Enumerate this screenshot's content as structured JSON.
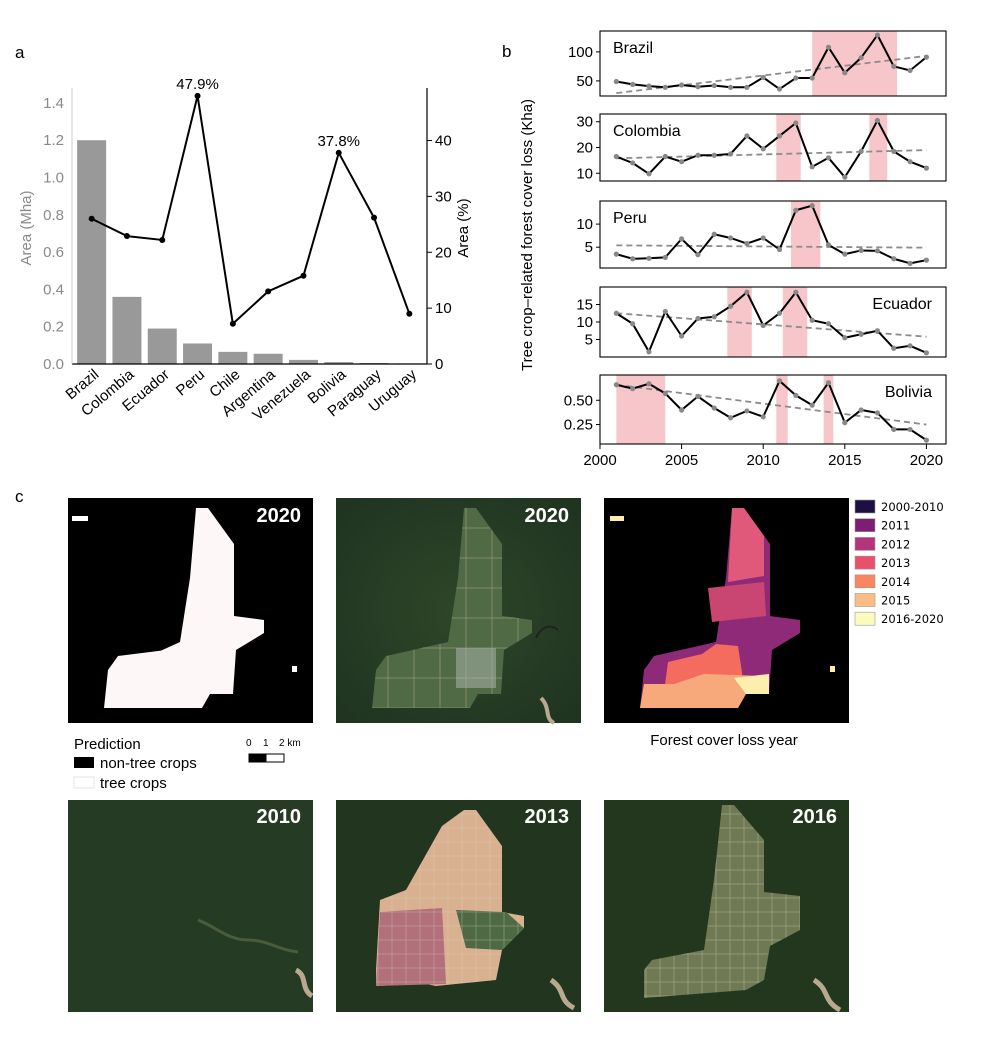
{
  "panel_labels": {
    "a": "a",
    "b": "b",
    "c": "c"
  },
  "colors": {
    "bar": "#999999",
    "line": "#000000",
    "trend": "#8c8c8c",
    "highlight": "#f4b3b8",
    "left_axis": "#8a8a8a"
  },
  "chart_data": [
    {
      "id": "panel-a",
      "type": "bar+line",
      "categories": [
        "Brazil",
        "Colombia",
        "Ecuador",
        "Peru",
        "Chile",
        "Argentina",
        "Venezuela",
        "Bolivia",
        "Paraguay",
        "Uruguay"
      ],
      "bar_values": [
        1.2,
        0.36,
        0.19,
        0.11,
        0.065,
        0.055,
        0.022,
        0.01,
        0.005,
        0.003
      ],
      "line_values": [
        26.0,
        22.9,
        22.2,
        48.0,
        7.2,
        13.0,
        15.8,
        37.8,
        26.2,
        9.0
      ],
      "ylabel_left": "Area (Mha)",
      "ylabel_right": "Area (%)",
      "ylim_left": [
        0,
        1.48
      ],
      "ylim_right": [
        0,
        49.4
      ],
      "yticks_left": [
        "0.0",
        "0.2",
        "0.4",
        "0.6",
        "0.8",
        "1.0",
        "1.2",
        "1.4"
      ],
      "yticks_left_values": [
        0,
        0.2,
        0.4,
        0.6,
        0.8,
        1.0,
        1.2,
        1.4
      ],
      "yticks_right": [
        "0",
        "10",
        "20",
        "30",
        "40"
      ],
      "yticks_right_values": [
        0,
        10,
        20,
        30,
        40
      ],
      "annotations": [
        {
          "text": "47.9%",
          "index": 3
        },
        {
          "text": "37.8%",
          "index": 7
        }
      ]
    },
    {
      "id": "panel-b",
      "type": "line",
      "ylabel": "Tree crop–related forest cover loss (Kha)",
      "x": [
        2001,
        2002,
        2003,
        2004,
        2005,
        2006,
        2007,
        2008,
        2009,
        2010,
        2011,
        2012,
        2013,
        2014,
        2015,
        2016,
        2017,
        2018,
        2019,
        2020
      ],
      "xlim": [
        2000,
        2021.2
      ],
      "xticks": [
        2000,
        2005,
        2010,
        2015,
        2020
      ],
      "xtick_labels": [
        "2000",
        "2005",
        "2010",
        "2015",
        "2020"
      ],
      "series": [
        {
          "name": "Brazil",
          "label_pos": "left",
          "values": [
            49,
            44,
            41,
            39,
            43,
            40,
            42,
            39,
            39,
            56,
            36,
            55,
            55,
            108,
            64,
            90,
            129,
            75,
            68,
            91
          ],
          "trend": [
            29,
            93
          ],
          "ylim": [
            24,
            136
          ],
          "yticks": [
            50,
            100
          ],
          "ytick_labels": [
            "50",
            "100"
          ],
          "highlights": [
            [
              2013,
              2018.2
            ]
          ]
        },
        {
          "name": "Colombia",
          "label_pos": "left",
          "values": [
            16.5,
            14,
            9.8,
            16.5,
            14.5,
            17,
            17,
            17.5,
            24.5,
            19.5,
            24.5,
            29.5,
            12.5,
            16,
            8.5,
            18.5,
            30.5,
            18.5,
            14.5,
            12
          ],
          "trend": [
            15.8,
            19
          ],
          "ylim": [
            7,
            33
          ],
          "yticks": [
            10,
            20,
            30
          ],
          "ytick_labels": [
            "10",
            "20",
            "30"
          ],
          "highlights": [
            [
              2010.8,
              2012.3
            ],
            [
              2016.5,
              2017.6
            ]
          ]
        },
        {
          "name": "Peru",
          "label_pos": "left",
          "values": [
            3.5,
            2.5,
            2.6,
            2.8,
            6.8,
            3.4,
            7.8,
            7,
            5.8,
            7,
            4.5,
            13,
            14,
            5.5,
            3.5,
            4.3,
            4.2,
            2.5,
            1.5,
            2.2
          ],
          "trend": [
            5.4,
            4.9
          ],
          "ylim": [
            0.5,
            15
          ],
          "yticks": [
            5,
            10
          ],
          "ytick_labels": [
            "5",
            "10"
          ],
          "highlights": [
            [
              2011.7,
              2013.5
            ]
          ]
        },
        {
          "name": "Ecuador",
          "label_pos": "right",
          "values": [
            12.5,
            9.5,
            1.5,
            13,
            6,
            11,
            11.5,
            14.5,
            18.5,
            9,
            12.5,
            18.5,
            10.5,
            9.5,
            5.5,
            6.5,
            7.5,
            2.5,
            3.2,
            1.2
          ],
          "trend": [
            12.5,
            5.8
          ],
          "ylim": [
            0,
            20
          ],
          "yticks": [
            5,
            10,
            15
          ],
          "ytick_labels": [
            "5",
            "10",
            "15"
          ],
          "highlights": [
            [
              2007.8,
              2009.3
            ],
            [
              2011.2,
              2012.7
            ]
          ]
        },
        {
          "name": "Bolivia",
          "label_pos": "right",
          "values": [
            0.66,
            0.62,
            0.67,
            0.57,
            0.4,
            0.54,
            0.42,
            0.32,
            0.39,
            0.33,
            0.7,
            0.55,
            0.45,
            0.68,
            0.27,
            0.4,
            0.37,
            0.2,
            0.2,
            0.09
          ],
          "trend": [
            0.66,
            0.25
          ],
          "ylim": [
            0.05,
            0.76
          ],
          "yticks": [
            0.25,
            0.5
          ],
          "ytick_labels": [
            "0.25",
            "0.50"
          ],
          "highlights": [
            [
              2001,
              2004
            ],
            [
              2010.8,
              2011.5
            ],
            [
              2013.7,
              2014.3
            ]
          ]
        }
      ]
    }
  ],
  "panel_c": {
    "top_images": [
      {
        "label": "2020",
        "kind": "prediction"
      },
      {
        "label": "2020",
        "kind": "satellite"
      },
      {
        "label": "",
        "kind": "loss-year"
      }
    ],
    "bottom_images": [
      {
        "label": "2010"
      },
      {
        "label": "2013"
      },
      {
        "label": "2016"
      }
    ],
    "legend_prediction": {
      "title": "Prediction",
      "items": [
        {
          "label": "non-tree crops",
          "color": "#000000"
        },
        {
          "label": "tree crops",
          "color": "#ffffff"
        }
      ]
    },
    "scalebar": {
      "labels": [
        "0",
        "1",
        "2 km"
      ]
    },
    "loss_year_caption": "Forest cover loss year",
    "loss_year_legend": [
      {
        "label": "2000-2010",
        "color": "#1e0f43"
      },
      {
        "label": "2011",
        "color": "#7b1e74"
      },
      {
        "label": "2012",
        "color": "#b5357a"
      },
      {
        "label": "2013",
        "color": "#e9506a"
      },
      {
        "label": "2014",
        "color": "#f88760"
      },
      {
        "label": "2015",
        "color": "#fbbd86"
      },
      {
        "label": "2016-2020",
        "color": "#fcfbbe"
      }
    ]
  }
}
